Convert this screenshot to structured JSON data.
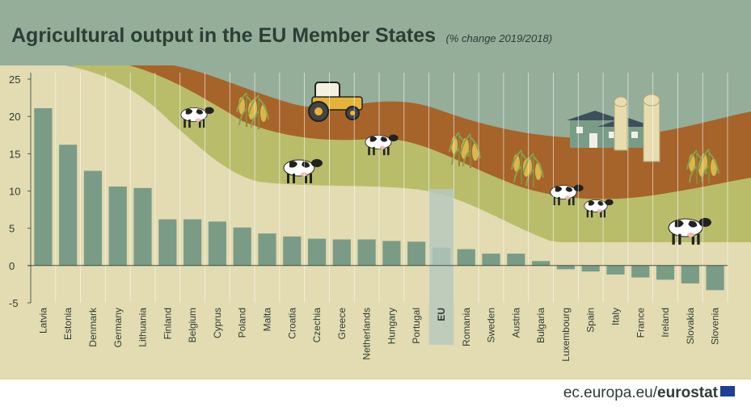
{
  "chart_data": {
    "type": "bar",
    "title": "Agricultural output in the EU Member States",
    "subtitle": "(% change 2019/2018)",
    "categories": [
      "Latvia",
      "Estonia",
      "Denmark",
      "Germany",
      "Lithuania",
      "Finland",
      "Belgium",
      "Cyprus",
      "Poland",
      "Malta",
      "Croatia",
      "Czechia",
      "Greece",
      "Netherlands",
      "Hungary",
      "Portugal",
      "EU",
      "Romania",
      "Sweden",
      "Austria",
      "Bulgaria",
      "Luxembourg",
      "Spain",
      "Italy",
      "France",
      "Ireland",
      "Slovakia",
      "Slovenia"
    ],
    "values": [
      21.1,
      16.2,
      12.7,
      10.6,
      10.4,
      6.2,
      6.2,
      5.9,
      5.1,
      4.3,
      3.9,
      3.6,
      3.5,
      3.5,
      3.3,
      3.2,
      2.4,
      2.2,
      1.6,
      1.6,
      0.6,
      -0.5,
      -0.8,
      -1.2,
      -1.6,
      -1.9,
      -2.4,
      -3.3
    ],
    "highlight_category": "EU",
    "ylim": [
      -5,
      25
    ],
    "yticks": [
      -5,
      0,
      5,
      10,
      15,
      20,
      25
    ],
    "grid": "vertical",
    "colors": {
      "bar": "#7a9c87",
      "eu_bar": "#a9bfb1",
      "eu_column": "#b8c9bd",
      "plot_bg": "#e3dbb1"
    }
  },
  "footer": {
    "site": "ec.europa.eu/",
    "brand": "eurostat"
  },
  "illustration": {
    "icons": [
      "cow-icon",
      "tractor-icon",
      "farm-house-icon",
      "silo-icon",
      "corn-icon"
    ],
    "colors": {
      "sky": "#94ae9a",
      "band_brown": "#a6642a",
      "band_green": "#b9bd6a",
      "band_light": "#e3dbb1"
    }
  }
}
